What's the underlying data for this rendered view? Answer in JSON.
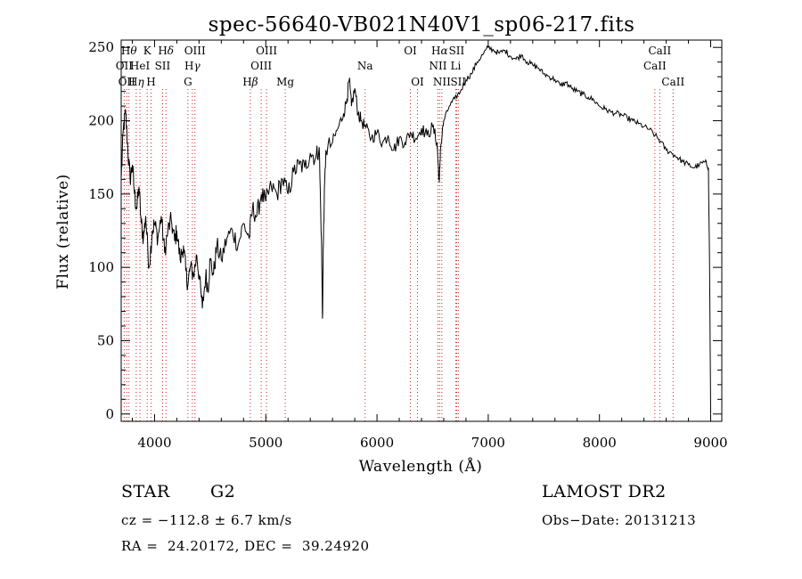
{
  "chart_data": {
    "type": "line",
    "title": "spec-56640-VB021N40V1_sp06-217.fits",
    "xlabel": "Wavelength (Å)",
    "ylabel": "Flux (relative)",
    "xlim": [
      3700,
      9100
    ],
    "ylim": [
      -5,
      255
    ],
    "x_ticks": [
      4000,
      5000,
      6000,
      7000,
      8000,
      9000
    ],
    "x_tick_labels": [
      "4000",
      "5000",
      "6000",
      "7000",
      "8000",
      "9000"
    ],
    "y_ticks": [
      0,
      50,
      100,
      150,
      200,
      250
    ],
    "y_tick_labels": [
      "0",
      "50",
      "100",
      "150",
      "200",
      "250"
    ],
    "grid": false,
    "series": [
      {
        "name": "",
        "color": "#000000",
        "points": [
          [
            3700,
            160
          ],
          [
            3720,
            195
          ],
          [
            3740,
            205
          ],
          [
            3760,
            180
          ],
          [
            3780,
            160
          ],
          [
            3800,
            170
          ],
          [
            3820,
            150
          ],
          [
            3840,
            140
          ],
          [
            3860,
            155
          ],
          [
            3880,
            130
          ],
          [
            3900,
            120
          ],
          [
            3920,
            135
          ],
          [
            3950,
            100
          ],
          [
            3980,
            125
          ],
          [
            4000,
            130
          ],
          [
            4030,
            120
          ],
          [
            4060,
            135
          ],
          [
            4090,
            110
          ],
          [
            4120,
            125
          ],
          [
            4150,
            132
          ],
          [
            4180,
            118
          ],
          [
            4200,
            125
          ],
          [
            4230,
            105
          ],
          [
            4260,
            115
          ],
          [
            4280,
            98
          ],
          [
            4300,
            88
          ],
          [
            4320,
            100
          ],
          [
            4350,
            95
          ],
          [
            4380,
            108
          ],
          [
            4400,
            95
          ],
          [
            4430,
            72
          ],
          [
            4460,
            95
          ],
          [
            4480,
            85
          ],
          [
            4500,
            105
          ],
          [
            4530,
            95
          ],
          [
            4560,
            115
          ],
          [
            4600,
            105
          ],
          [
            4650,
            120
          ],
          [
            4700,
            125
          ],
          [
            4750,
            115
          ],
          [
            4800,
            130
          ],
          [
            4850,
            120
          ],
          [
            4880,
            140
          ],
          [
            4920,
            135
          ],
          [
            4960,
            150
          ],
          [
            5000,
            145
          ],
          [
            5050,
            155
          ],
          [
            5100,
            150
          ],
          [
            5150,
            160
          ],
          [
            5200,
            150
          ],
          [
            5250,
            165
          ],
          [
            5300,
            170
          ],
          [
            5350,
            168
          ],
          [
            5400,
            178
          ],
          [
            5450,
            175
          ],
          [
            5480,
            182
          ],
          [
            5500,
            120
          ],
          [
            5510,
            65
          ],
          [
            5520,
            130
          ],
          [
            5540,
            180
          ],
          [
            5600,
            185
          ],
          [
            5650,
            195
          ],
          [
            5700,
            205
          ],
          [
            5730,
            215
          ],
          [
            5750,
            228
          ],
          [
            5770,
            210
          ],
          [
            5800,
            222
          ],
          [
            5830,
            205
          ],
          [
            5860,
            200
          ],
          [
            5900,
            195
          ],
          [
            5950,
            188
          ],
          [
            6000,
            192
          ],
          [
            6050,
            185
          ],
          [
            6100,
            190
          ],
          [
            6150,
            180
          ],
          [
            6200,
            188
          ],
          [
            6250,
            185
          ],
          [
            6300,
            192
          ],
          [
            6350,
            188
          ],
          [
            6400,
            195
          ],
          [
            6450,
            190
          ],
          [
            6500,
            196
          ],
          [
            6540,
            185
          ],
          [
            6550,
            170
          ],
          [
            6560,
            158
          ],
          [
            6570,
            180
          ],
          [
            6600,
            200
          ],
          [
            6650,
            210
          ],
          [
            6700,
            215
          ],
          [
            6750,
            220
          ],
          [
            6800,
            228
          ],
          [
            6850,
            232
          ],
          [
            6900,
            240
          ],
          [
            6950,
            245
          ],
          [
            7000,
            250
          ],
          [
            7050,
            248
          ],
          [
            7100,
            246
          ],
          [
            7150,
            248
          ],
          [
            7200,
            244
          ],
          [
            7250,
            242
          ],
          [
            7300,
            245
          ],
          [
            7350,
            240
          ],
          [
            7400,
            238
          ],
          [
            7450,
            236
          ],
          [
            7500,
            232
          ],
          [
            7550,
            230
          ],
          [
            7600,
            228
          ],
          [
            7650,
            224
          ],
          [
            7700,
            226
          ],
          [
            7750,
            222
          ],
          [
            7800,
            220
          ],
          [
            7850,
            218
          ],
          [
            7900,
            216
          ],
          [
            7950,
            214
          ],
          [
            8000,
            210
          ],
          [
            8050,
            208
          ],
          [
            8100,
            206
          ],
          [
            8150,
            205
          ],
          [
            8200,
            204
          ],
          [
            8250,
            202
          ],
          [
            8300,
            200
          ],
          [
            8350,
            198
          ],
          [
            8400,
            196
          ],
          [
            8450,
            194
          ],
          [
            8500,
            190
          ],
          [
            8550,
            186
          ],
          [
            8600,
            180
          ],
          [
            8650,
            178
          ],
          [
            8700,
            175
          ],
          [
            8750,
            172
          ],
          [
            8800,
            170
          ],
          [
            8850,
            168
          ],
          [
            8900,
            170
          ],
          [
            8950,
            172
          ],
          [
            8980,
            168
          ],
          [
            8990,
            100
          ],
          [
            9000,
            0
          ]
        ]
      }
    ],
    "lines": [
      {
        "wavelength": 3727,
        "labels": [
          {
            "text": "OII",
            "row": 2
          }
        ]
      },
      {
        "wavelength": 3750,
        "labels": [
          {
            "text": "OII",
            "row": 3
          }
        ]
      },
      {
        "wavelength": 3770,
        "labels": [
          {
            "text": "H",
            "greek": "θ",
            "row": 1
          }
        ]
      },
      {
        "wavelength": 3835,
        "labels": [
          {
            "text": "H",
            "greek": "η",
            "row": 3
          }
        ]
      },
      {
        "wavelength": 3869,
        "labels": [
          {
            "text": "HeI",
            "row": 2
          }
        ]
      },
      {
        "wavelength": 3934,
        "labels": [
          {
            "text": "K",
            "row": 1
          }
        ]
      },
      {
        "wavelength": 3968,
        "labels": [
          {
            "text": "H",
            "row": 3
          }
        ]
      },
      {
        "wavelength": 4072,
        "labels": [
          {
            "text": "SII",
            "row": 2
          }
        ]
      },
      {
        "wavelength": 4102,
        "labels": [
          {
            "text": "H",
            "greek": "δ",
            "row": 1
          }
        ]
      },
      {
        "wavelength": 4300,
        "labels": [
          {
            "text": "G",
            "row": 3
          }
        ]
      },
      {
        "wavelength": 4340,
        "labels": [
          {
            "text": "H",
            "greek": "γ",
            "row": 2
          }
        ]
      },
      {
        "wavelength": 4363,
        "labels": [
          {
            "text": "OIII",
            "row": 1
          }
        ]
      },
      {
        "wavelength": 4861,
        "labels": [
          {
            "text": "H",
            "greek": "β",
            "row": 3
          }
        ]
      },
      {
        "wavelength": 4959,
        "labels": [
          {
            "text": "OIII",
            "row": 2
          }
        ]
      },
      {
        "wavelength": 5007,
        "labels": [
          {
            "text": "OIII",
            "row": 1
          }
        ]
      },
      {
        "wavelength": 5175,
        "labels": [
          {
            "text": "Mg",
            "row": 3
          }
        ]
      },
      {
        "wavelength": 5893,
        "labels": [
          {
            "text": "Na",
            "row": 2
          }
        ]
      },
      {
        "wavelength": 6300,
        "labels": [
          {
            "text": "OI",
            "row": 1
          }
        ]
      },
      {
        "wavelength": 6364,
        "labels": [
          {
            "text": "OI",
            "row": 3
          }
        ]
      },
      {
        "wavelength": 6548,
        "labels": [
          {
            "text": "NII",
            "row": 2
          }
        ]
      },
      {
        "wavelength": 6563,
        "labels": [
          {
            "text": "H",
            "greek": "α",
            "row": 1
          }
        ]
      },
      {
        "wavelength": 6583,
        "labels": [
          {
            "text": "NII",
            "row": 3
          }
        ]
      },
      {
        "wavelength": 6708,
        "labels": [
          {
            "text": "Li",
            "row": 2
          }
        ]
      },
      {
        "wavelength": 6716,
        "labels": [
          {
            "text": "SII",
            "row": 1
          }
        ]
      },
      {
        "wavelength": 6731,
        "labels": [
          {
            "text": "SII",
            "row": 3
          }
        ]
      },
      {
        "wavelength": 8498,
        "labels": [
          {
            "text": "CaII",
            "row": 2
          }
        ]
      },
      {
        "wavelength": 8542,
        "labels": [
          {
            "text": "CaII",
            "row": 1
          }
        ]
      },
      {
        "wavelength": 8662,
        "labels": [
          {
            "text": "CaII",
            "row": 3
          }
        ]
      }
    ]
  },
  "info": {
    "object_type": "STAR",
    "subclass": "G2",
    "survey": "LAMOST DR2",
    "redshift": "cz = −112.8 ± 6.7 km/s",
    "obs_date": "Obs−Date: 20131213",
    "coords": "RA =  24.20172, DEC =  39.24920"
  }
}
